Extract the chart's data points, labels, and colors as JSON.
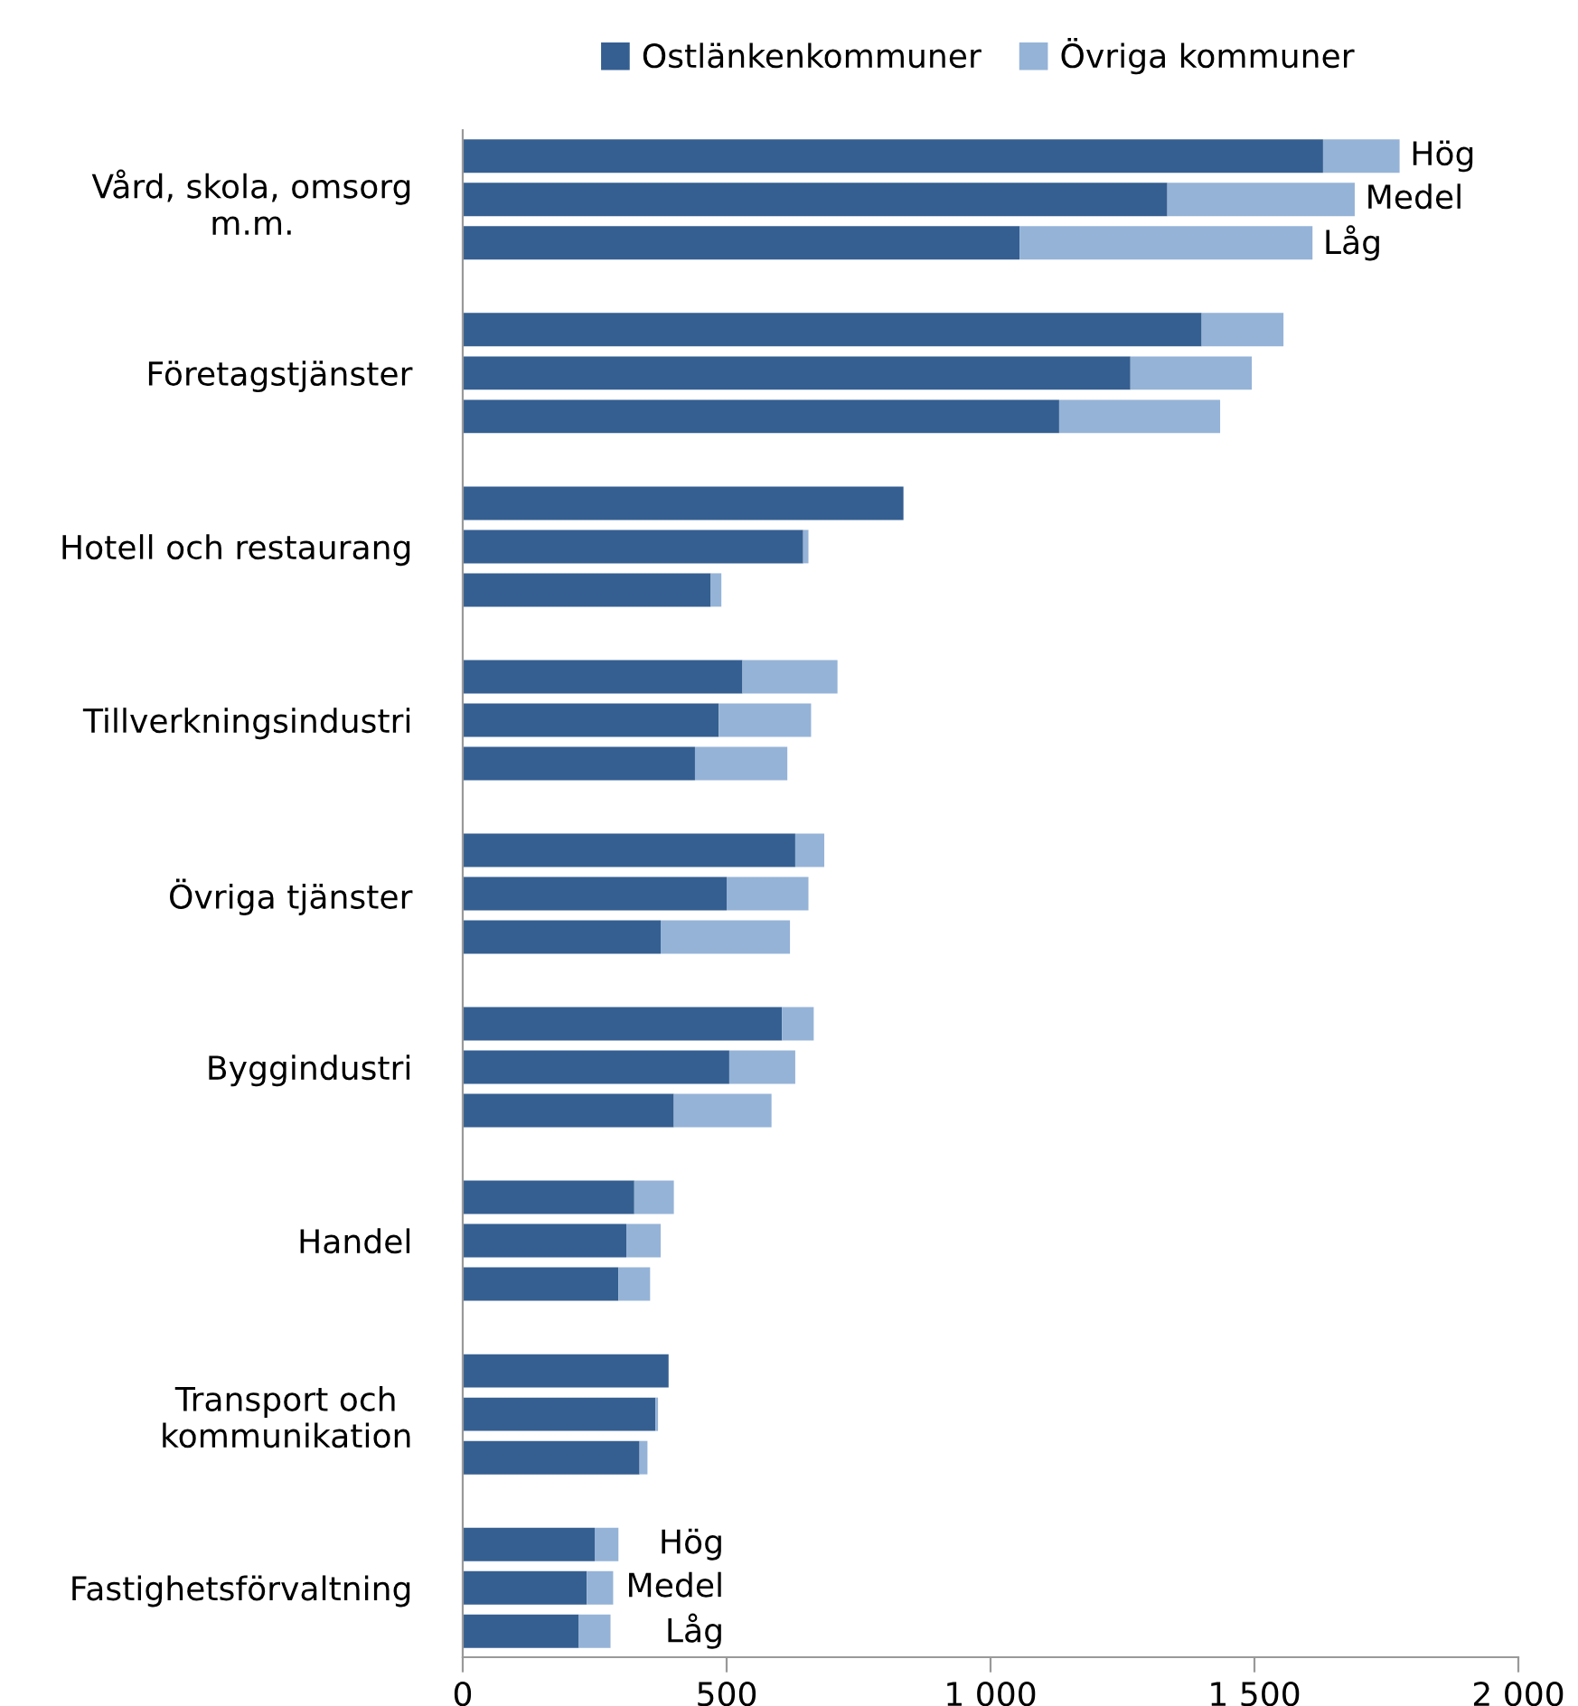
{
  "chart_data": {
    "type": "bar",
    "orientation": "horizontal",
    "stacked": true,
    "categories": [
      null,
      "Vård, skola, omsorg\nm.m.",
      null,
      null,
      "Företagstjänster",
      null,
      null,
      "Hotell och restaurang",
      null,
      null,
      "Tillverkningsindustri",
      null,
      null,
      "Övriga tjänster",
      null,
      null,
      "Byggindustri",
      null,
      null,
      "Handel",
      null,
      null,
      "Transport och\nkommunikation",
      null,
      null,
      "Fastighetsförvaltning",
      null
    ],
    "series": [
      {
        "name": "Ostlänkenkommuner",
        "color": "#355f91",
        "values": [
          1630,
          1335,
          1055,
          1400,
          1265,
          1130,
          835,
          645,
          470,
          530,
          485,
          440,
          630,
          500,
          375,
          605,
          505,
          400,
          325,
          310,
          295,
          390,
          365,
          335,
          250,
          235,
          220
        ]
      },
      {
        "name": "Övriga kommuner",
        "color": "#95b3d7",
        "values": [
          145,
          355,
          555,
          155,
          230,
          305,
          0,
          10,
          20,
          180,
          175,
          175,
          55,
          155,
          245,
          60,
          125,
          185,
          75,
          65,
          60,
          0,
          5,
          15,
          45,
          50,
          60
        ]
      }
    ],
    "xlim": [
      0,
      2000
    ],
    "xticks": [
      0,
      500,
      {
        "value": 1000,
        "label": "1 000"
      },
      {
        "value": 1500,
        "label": "1 500"
      },
      {
        "value": 2000,
        "label": "2 000"
      }
    ],
    "annotations": [
      "Hög",
      "Medel",
      "Låg",
      "Hög",
      "Medel",
      "Låg"
    ],
    "legend": "top",
    "grid": false
  }
}
